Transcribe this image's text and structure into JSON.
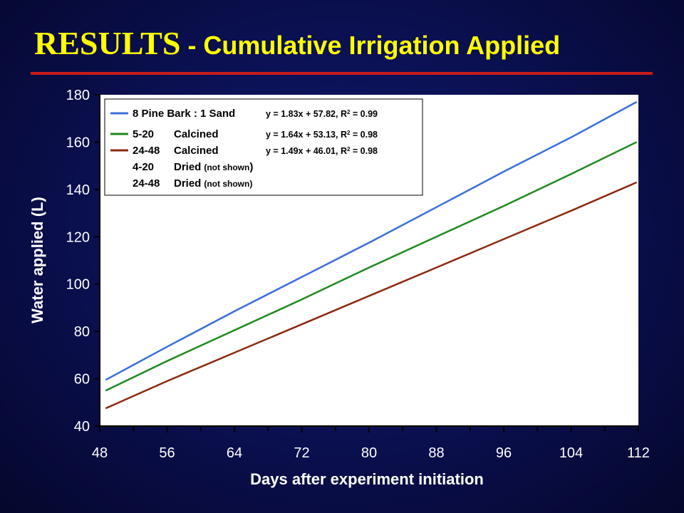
{
  "title": {
    "main": "RESULTS",
    "sub": " - Cumulative Irrigation Applied"
  },
  "colors": {
    "background": "#0a0f4e",
    "title": "#ffff00",
    "rule": "#c81c1c",
    "plot_bg": "#ffffff"
  },
  "chart_data": {
    "type": "line",
    "xlabel": "Days after experiment initiation",
    "ylabel": "Water applied (L)",
    "xlim": [
      48,
      112
    ],
    "ylim": [
      40,
      180
    ],
    "xticks": [
      48,
      56,
      64,
      72,
      80,
      88,
      96,
      104,
      112
    ],
    "yticks": [
      40,
      60,
      80,
      100,
      120,
      140,
      160,
      180
    ],
    "grid": false,
    "legend_position": "top-left",
    "series": [
      {
        "name": "8 Pine Bark : 1 Sand",
        "color": "#3a6fd8",
        "equation": "y = 1.83x + 57.82, R",
        "r2": "2",
        "r2_value": " = 0.99",
        "x": [
          48.7,
          56,
          64,
          72,
          80,
          88,
          96,
          104,
          111.8
        ],
        "values": [
          59.5,
          73.5,
          88.5,
          103,
          117.5,
          132.5,
          147.5,
          162,
          177
        ]
      },
      {
        "name": "5-20 Calcined",
        "name_part1": "5-20",
        "name_part2": "Calcined",
        "color": "#1f8a1f",
        "equation": "y = 1.64x + 53.13, R",
        "r2": "2",
        "r2_value": " = 0.98",
        "x": [
          48.7,
          56,
          64,
          72,
          80,
          88,
          96,
          104,
          111.8
        ],
        "values": [
          55,
          67.5,
          80.5,
          93.5,
          107,
          120,
          133,
          146.5,
          160
        ]
      },
      {
        "name": "24-48 Calcined",
        "name_part1": "24-48",
        "name_part2": "Calcined",
        "color": "#8b2a10",
        "equation": "y = 1.49x + 46.01, R",
        "r2": "2",
        "r2_value": " = 0.98",
        "x": [
          48.7,
          56,
          64,
          72,
          80,
          88,
          96,
          104,
          111.8
        ],
        "values": [
          47.5,
          59,
          71,
          83,
          95,
          107,
          119,
          131,
          143
        ]
      }
    ],
    "legend_extra": [
      {
        "part1": "4-20",
        "part2": "Dried",
        "note": "(not shown",
        "close": ")"
      },
      {
        "part1": "24-48",
        "part2": "Dried",
        "note": "(not shown)",
        "close": ""
      }
    ]
  }
}
